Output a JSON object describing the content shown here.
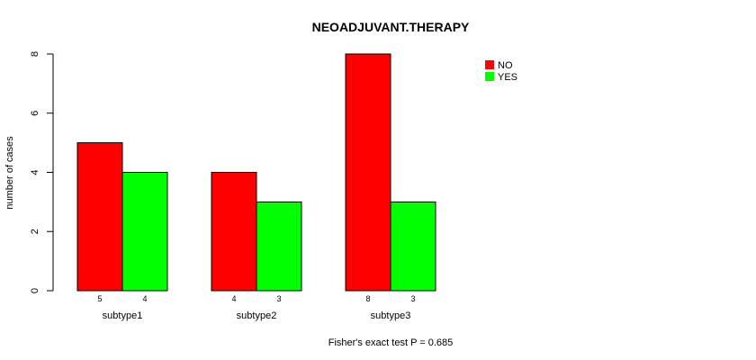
{
  "chart_data": {
    "type": "bar",
    "title": "NEOADJUVANT.THERAPY",
    "xlabel": "",
    "ylabel": "number of cases",
    "categories": [
      "subtype1",
      "subtype2",
      "subtype3"
    ],
    "series": [
      {
        "name": "NO",
        "color": "#ff0000",
        "values": [
          5,
          4,
          8
        ]
      },
      {
        "name": "YES",
        "color": "#00ff00",
        "values": [
          4,
          3,
          3
        ]
      }
    ],
    "ylim": [
      0,
      8
    ],
    "yticks": [
      "0",
      "2",
      "4",
      "6",
      "8"
    ],
    "legend_position": "top-right",
    "grid": false,
    "footer": "Fisher's exact test P = 0.685"
  }
}
